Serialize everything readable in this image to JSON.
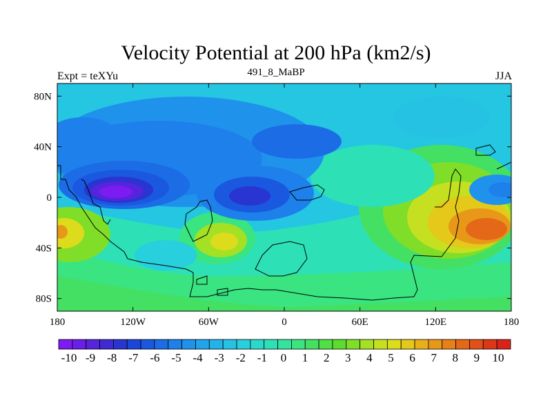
{
  "title": "Velocity Potential at 200 hPa (km2/s)",
  "left_label": "Expt = teXYu",
  "center_label": "491_8_MaBP",
  "right_label": "JJA",
  "lat_ticks": [
    "80N",
    "40N",
    "0",
    "40S",
    "80S"
  ],
  "lon_ticks": [
    "180",
    "120W",
    "60W",
    "0",
    "60E",
    "120E",
    "180"
  ],
  "colorbar": {
    "labels": [
      "-10",
      "-9",
      "-8",
      "-7",
      "-6",
      "-5",
      "-4",
      "-3",
      "-2",
      "-1",
      "0",
      "1",
      "2",
      "3",
      "4",
      "5",
      "6",
      "7",
      "8",
      "9",
      "10"
    ],
    "colors": [
      "#7c1cf0",
      "#6a1fe6",
      "#5524dc",
      "#3f2ad4",
      "#2835d0",
      "#1c46d8",
      "#1a58e0",
      "#1c6ce6",
      "#1e80ea",
      "#1f93ec",
      "#21a4ec",
      "#23b3e8",
      "#25c2e4",
      "#28cfdc",
      "#2ad8cc",
      "#2ee0b6",
      "#32e49c",
      "#3ae480",
      "#44e064",
      "#4ee044",
      "#5cdc2c",
      "#80de28",
      "#a4e024",
      "#c4e020",
      "#dcdc1c",
      "#e4c81a",
      "#e8b018",
      "#e89818",
      "#e88018",
      "#e46818",
      "#e05018",
      "#dc3818",
      "#d82418"
    ]
  },
  "field_colors": {
    "background": "#25c2e4",
    "coastline": "#000000"
  }
}
